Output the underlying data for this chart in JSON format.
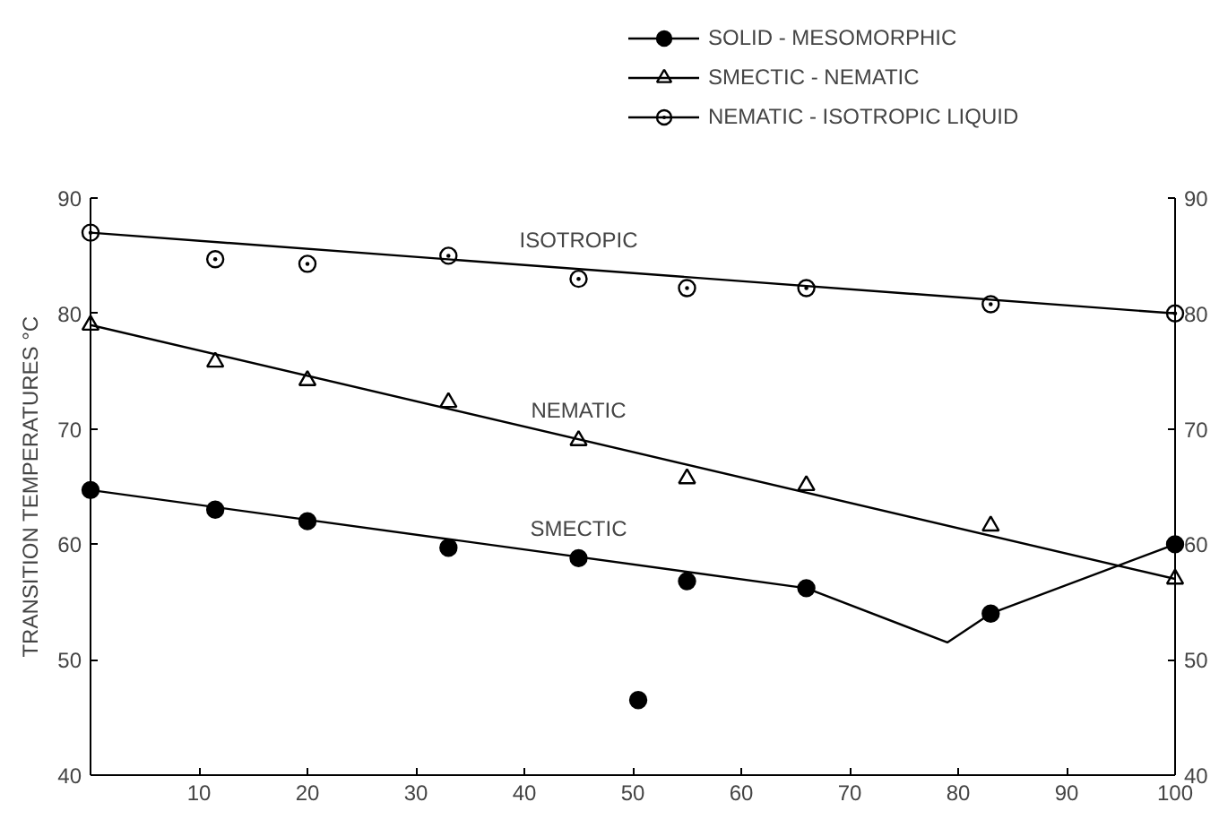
{
  "chart_data": {
    "type": "scatter",
    "ylabel": "TRANSITION TEMPERATURES °C",
    "xlim": [
      0,
      100
    ],
    "xticks": [
      {
        "value": 0,
        "label": null
      },
      10,
      20,
      30,
      40,
      50,
      60,
      70,
      80,
      90,
      100
    ],
    "ylim": [
      40,
      90
    ],
    "yticks": [
      40,
      50,
      60,
      70,
      80,
      90
    ],
    "y2lim": [
      40,
      90
    ],
    "y2ticks": [
      40,
      50,
      60,
      70,
      80,
      90
    ],
    "grid": false,
    "legend": "top right",
    "series": [
      {
        "name": "SOLID - MESOMORPHIC",
        "color": "#000000",
        "marker": "circle",
        "x": [
          0,
          11.5,
          20,
          33,
          45,
          55,
          66,
          83,
          100
        ],
        "values": [
          64.7,
          63,
          62,
          59.7,
          58.8,
          56.8,
          56.2,
          54,
          60
        ]
      },
      {
        "name": "SMECTIC - NEMATIC",
        "color": "#000000",
        "marker": "triangle",
        "x": [
          0,
          11.5,
          20,
          33,
          45,
          55,
          66,
          83,
          100
        ],
        "values": [
          79,
          75.8,
          74.2,
          72.3,
          69,
          65.7,
          65.1,
          61.6,
          57
        ]
      },
      {
        "name": "NEMATIC - ISOTROPIC LIQUID",
        "color": "#000000",
        "marker": "circle_dot",
        "x": [
          0,
          11.5,
          20,
          33,
          45,
          55,
          66,
          83,
          100
        ],
        "values": [
          87,
          84.7,
          84.3,
          85,
          83,
          82.2,
          82.2,
          80.8,
          80
        ]
      },
      {
        "color": "#000000",
        "marker": "circle",
        "x": [
          50.5
        ],
        "values": [
          46.5
        ]
      },
      {
        "type": "line",
        "color": "#000000",
        "x": [
          0,
          100
        ],
        "values": [
          87,
          80
        ]
      },
      {
        "type": "line",
        "color": "#000000",
        "x": [
          0,
          100
        ],
        "values": [
          79,
          57
        ]
      },
      {
        "type": "line",
        "color": "#000000",
        "x": [
          0,
          66,
          79,
          83,
          100
        ],
        "values": [
          64.7,
          56.2,
          51.5,
          54,
          60
        ]
      }
    ],
    "annotations": [
      "ISOTROPIC",
      "NEMATIC",
      "SMECTIC"
    ]
  }
}
